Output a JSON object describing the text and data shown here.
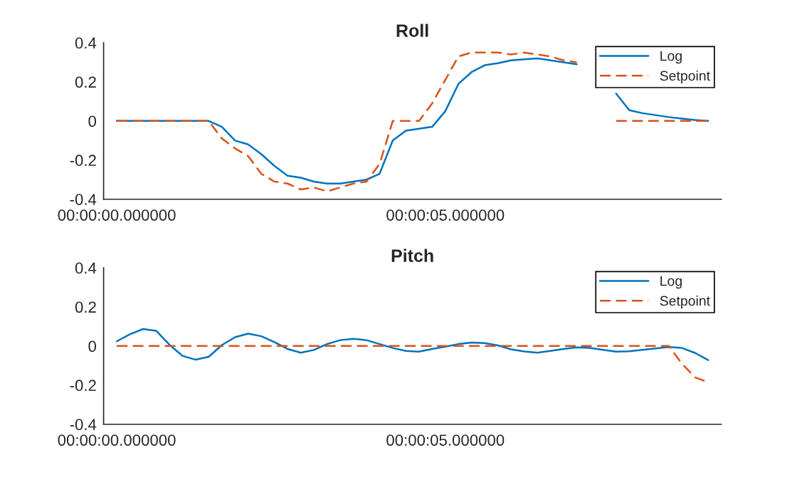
{
  "chart_data": [
    {
      "type": "line",
      "title": "Roll",
      "categories": [
        "00:00:00.000000",
        null,
        null,
        null,
        null,
        null,
        null,
        null,
        null,
        null,
        null,
        null,
        null,
        null,
        null,
        null,
        null,
        null,
        null,
        null,
        null,
        null,
        null,
        null,
        null,
        "00:00:05.000000",
        null,
        null,
        null,
        null,
        null,
        null,
        null,
        null,
        null,
        null,
        null,
        null,
        null,
        null,
        null,
        null,
        null,
        null,
        null,
        null
      ],
      "ylim": [
        -0.4,
        0.4
      ],
      "yticks": [
        -0.4,
        -0.2,
        0,
        0.2,
        0.4
      ],
      "grid": false,
      "legend": "top right",
      "series": [
        {
          "name": "Log",
          "color": "#0072bd",
          "line_style": "solid",
          "values": [
            0,
            0,
            0,
            0,
            0,
            0,
            0,
            0,
            -0.03,
            -0.1,
            -0.12,
            -0.17,
            -0.23,
            -0.28,
            -0.29,
            -0.31,
            -0.32,
            -0.32,
            -0.31,
            -0.3,
            -0.27,
            -0.1,
            -0.05,
            -0.04,
            -0.03,
            0.05,
            0.19,
            0.25,
            0.285,
            0.295,
            0.31,
            0.315,
            0.32,
            0.31,
            0.3,
            0.29,
            null,
            null,
            0.14,
            0.055,
            0.04,
            0.03,
            0.02,
            0.012,
            0.005,
            0
          ]
        },
        {
          "name": "Setpoint",
          "color": "#d95319",
          "line_style": "dashed",
          "values": [
            0,
            0,
            0,
            0,
            0,
            0,
            0,
            0,
            -0.09,
            -0.14,
            -0.18,
            -0.27,
            -0.31,
            -0.32,
            -0.35,
            -0.34,
            -0.36,
            -0.34,
            -0.32,
            -0.31,
            -0.22,
            0,
            0,
            0,
            0.09,
            0.21,
            0.33,
            0.35,
            0.35,
            0.35,
            0.34,
            0.35,
            0.34,
            0.33,
            0.31,
            0.3,
            null,
            null,
            0,
            0,
            0,
            0,
            0,
            0,
            0,
            0
          ]
        }
      ]
    },
    {
      "type": "line",
      "title": "Pitch",
      "categories": [
        "00:00:00.000000",
        null,
        null,
        null,
        null,
        null,
        null,
        null,
        null,
        null,
        null,
        null,
        null,
        null,
        null,
        null,
        null,
        null,
        null,
        null,
        null,
        null,
        null,
        null,
        null,
        "00:00:05.000000",
        null,
        null,
        null,
        null,
        null,
        null,
        null,
        null,
        null,
        null,
        null,
        null,
        null,
        null,
        null,
        null,
        null,
        null,
        null,
        null
      ],
      "ylim": [
        -0.4,
        0.4
      ],
      "yticks": [
        -0.4,
        -0.2,
        0,
        0.2,
        0.4
      ],
      "grid": false,
      "legend": "top right",
      "series": [
        {
          "name": "Log",
          "color": "#0072bd",
          "line_style": "solid",
          "values": [
            0.024,
            0.06,
            0.087,
            0.078,
            0.007,
            -0.05,
            -0.07,
            -0.055,
            0.005,
            0.045,
            0.063,
            0.05,
            0.02,
            -0.015,
            -0.034,
            -0.02,
            0.01,
            0.03,
            0.037,
            0.03,
            0.01,
            -0.01,
            -0.025,
            -0.029,
            -0.015,
            -0.003,
            0.01,
            0.018,
            0.015,
            0.003,
            -0.017,
            -0.028,
            -0.034,
            -0.025,
            -0.015,
            -0.007,
            -0.01,
            -0.02,
            -0.029,
            -0.027,
            -0.02,
            -0.012,
            -0.005,
            -0.01,
            -0.035,
            -0.072
          ]
        },
        {
          "name": "Setpoint",
          "color": "#d95319",
          "line_style": "dashed",
          "values": [
            0,
            0,
            0,
            0,
            0,
            0,
            0,
            0,
            0,
            0,
            0,
            0,
            0,
            0,
            0,
            0,
            0,
            0,
            0,
            0,
            0,
            0,
            0,
            0,
            0,
            0,
            0,
            0,
            0,
            0,
            0,
            0,
            0,
            0,
            0,
            0,
            0,
            0,
            0,
            0,
            0,
            0,
            0,
            -0.09,
            -0.16,
            -0.185
          ]
        }
      ]
    }
  ]
}
